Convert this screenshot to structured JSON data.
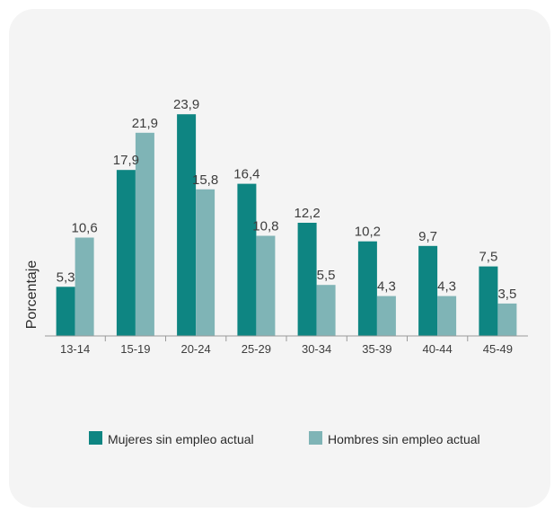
{
  "chart_data": {
    "type": "bar",
    "title": "",
    "xlabel": "",
    "ylabel": "Porcentaje",
    "categories": [
      "13-14",
      "15-19",
      "20-24",
      "25-29",
      "30-34",
      "35-39",
      "40-44",
      "45-49"
    ],
    "series": [
      {
        "name": "Mujeres sin empleo  actual",
        "color": "#0e8582",
        "values": [
          5.3,
          17.9,
          23.9,
          16.4,
          12.2,
          10.2,
          9.7,
          7.5
        ],
        "labels": [
          "5,3",
          "17,9",
          "23,9",
          "16,4",
          "12,2",
          "10,2",
          "9,7",
          "7,5"
        ]
      },
      {
        "name": "Hombres sin empleo actual",
        "color": "#7fb4b6",
        "values": [
          10.6,
          21.9,
          15.8,
          10.8,
          5.5,
          4.3,
          4.3,
          3.5
        ],
        "labels": [
          "10,6",
          "21,9",
          "15,8",
          "10,8",
          "5,5",
          "4,3",
          "4,3",
          "3,5"
        ]
      }
    ],
    "ylim": [
      0,
      24.5
    ],
    "grid": false,
    "legend": "bottom"
  }
}
